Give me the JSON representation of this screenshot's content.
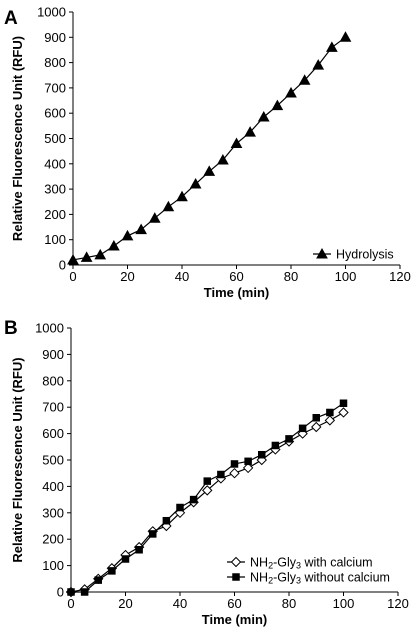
{
  "chart_data": [
    {
      "panel_label": "A",
      "type": "line",
      "xlabel": "Time (min)",
      "ylabel": "Relative Fluorescence Unit (RFU)",
      "xlim": [
        0,
        120
      ],
      "ylim": [
        0,
        1000
      ],
      "xticks": [
        0,
        20,
        40,
        60,
        80,
        100,
        120
      ],
      "yticks": [
        0,
        100,
        200,
        300,
        400,
        500,
        600,
        700,
        800,
        900,
        1000
      ],
      "grid": false,
      "legend_position": "bottom-right",
      "series": [
        {
          "name": "Hydrolysis",
          "marker": "filled-triangle",
          "color": "#000000",
          "x": [
            0,
            5,
            10,
            15,
            20,
            25,
            30,
            35,
            40,
            45,
            50,
            55,
            60,
            65,
            70,
            75,
            80,
            85,
            90,
            95,
            100
          ],
          "y": [
            20,
            30,
            40,
            75,
            115,
            140,
            185,
            230,
            270,
            320,
            370,
            415,
            480,
            525,
            585,
            630,
            680,
            730,
            790,
            860,
            900
          ]
        }
      ]
    },
    {
      "panel_label": "B",
      "type": "line",
      "xlabel": "Time (min)",
      "ylabel": "Relative Fluorescence Unit (RFU)",
      "xlim": [
        0,
        120
      ],
      "ylim": [
        0,
        1000
      ],
      "xticks": [
        0,
        20,
        40,
        60,
        80,
        100,
        120
      ],
      "yticks": [
        0,
        100,
        200,
        300,
        400,
        500,
        600,
        700,
        800,
        900,
        1000
      ],
      "grid": false,
      "legend_position": "bottom-right",
      "series": [
        {
          "name": "NH2-Gly3 with calcium",
          "marker": "open-diamond",
          "color": "#000000",
          "x": [
            0,
            5,
            10,
            15,
            20,
            25,
            30,
            35,
            40,
            45,
            50,
            55,
            60,
            65,
            70,
            75,
            80,
            85,
            90,
            95,
            100
          ],
          "y": [
            0,
            10,
            50,
            90,
            140,
            170,
            230,
            250,
            300,
            340,
            385,
            430,
            450,
            470,
            500,
            540,
            570,
            600,
            625,
            650,
            680
          ]
        },
        {
          "name": "NH2-Gly3 without calcium",
          "marker": "filled-square",
          "color": "#000000",
          "x": [
            0,
            5,
            10,
            15,
            20,
            25,
            30,
            35,
            40,
            45,
            50,
            55,
            60,
            65,
            70,
            75,
            80,
            85,
            90,
            95,
            100
          ],
          "y": [
            0,
            0,
            45,
            80,
            125,
            160,
            220,
            270,
            320,
            350,
            420,
            445,
            485,
            495,
            520,
            555,
            580,
            620,
            660,
            680,
            715
          ]
        }
      ]
    }
  ],
  "legend_text": {
    "panel_b": [
      {
        "prefix": "NH",
        "sub1": "2",
        "middle": "-Gly",
        "sub2": "3",
        "suffix": " with calcium"
      },
      {
        "prefix": "NH",
        "sub1": "2",
        "middle": "-Gly",
        "sub2": "3",
        "suffix": " without calcium"
      }
    ]
  }
}
